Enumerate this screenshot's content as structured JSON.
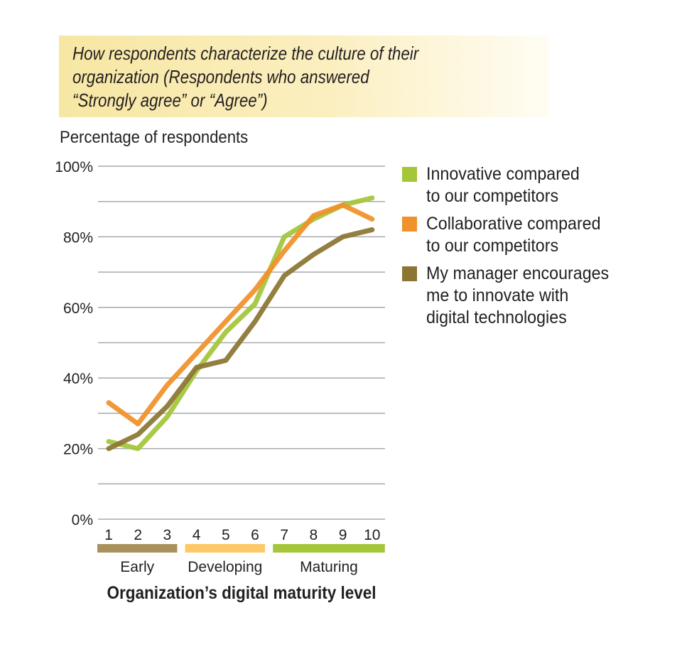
{
  "chart_data": {
    "type": "line",
    "title": "How respondents characterize the culture of their\norganization (Respondents who answered\n“Strongly agree” or “Agree”)",
    "ylabel": "Percentage of respondents",
    "xlabel": "Organization’s digital maturity level",
    "x": [
      1,
      2,
      3,
      4,
      5,
      6,
      7,
      8,
      9,
      10
    ],
    "x_tick_labels": [
      "1",
      "2",
      "3",
      "4",
      "5",
      "6",
      "7",
      "8",
      "9",
      "10"
    ],
    "ylim": [
      0,
      100
    ],
    "y_ticks": [
      0,
      20,
      40,
      60,
      80,
      100
    ],
    "y_tick_labels": [
      "0%",
      "20%",
      "40%",
      "60%",
      "80%",
      "100%"
    ],
    "grid": true,
    "grid_step": 10,
    "legend_position": "right",
    "series": [
      {
        "name": "Innovative compared\nto our competitors",
        "color": "#a4c639",
        "values": [
          22,
          20,
          29,
          42,
          53,
          61,
          80,
          85,
          89,
          91
        ]
      },
      {
        "name": "Collaborative compared\nto our competitors",
        "color": "#f0912a",
        "values": [
          33,
          27,
          38,
          47,
          56,
          65,
          76,
          86,
          89,
          85
        ]
      },
      {
        "name": "My manager encourages\nme to innovate with\ndigital technologies",
        "color": "#8b7532",
        "values": [
          20,
          24,
          32,
          43,
          45,
          56,
          69,
          75,
          80,
          82
        ]
      }
    ],
    "groups": [
      {
        "label": "Early",
        "from": 1,
        "to": 3,
        "color": "#a8915a"
      },
      {
        "label": "Developing",
        "from": 4,
        "to": 6,
        "color": "#fdc865"
      },
      {
        "label": "Maturing",
        "from": 7,
        "to": 10,
        "color": "#a4c639"
      }
    ]
  }
}
